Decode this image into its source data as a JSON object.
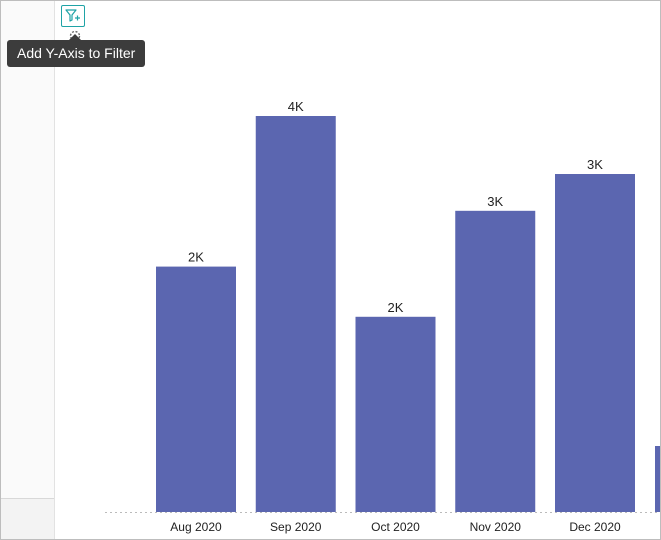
{
  "tooltip": {
    "text": "Add Y-Axis to Filter"
  },
  "icons": {
    "filter": "filter-plus-icon",
    "loading": "spinner-icon"
  },
  "colors": {
    "bar": "#5b66b0",
    "accent": "#1fa3a6",
    "tooltip_bg": "#3c3c3c"
  },
  "chart_data": {
    "type": "bar",
    "categories": [
      "Aug 2020",
      "Sep 2020",
      "Oct 2020",
      "Nov 2020",
      "Dec 2020"
    ],
    "values": [
      2200,
      3550,
      1750,
      2700,
      3030
    ],
    "data_labels": [
      "2K",
      "4K",
      "2K",
      "3K",
      "3K"
    ],
    "ylim": [
      0,
      3650
    ],
    "grid": false,
    "y_axis_visible": false,
    "partial_next_bar": true
  }
}
